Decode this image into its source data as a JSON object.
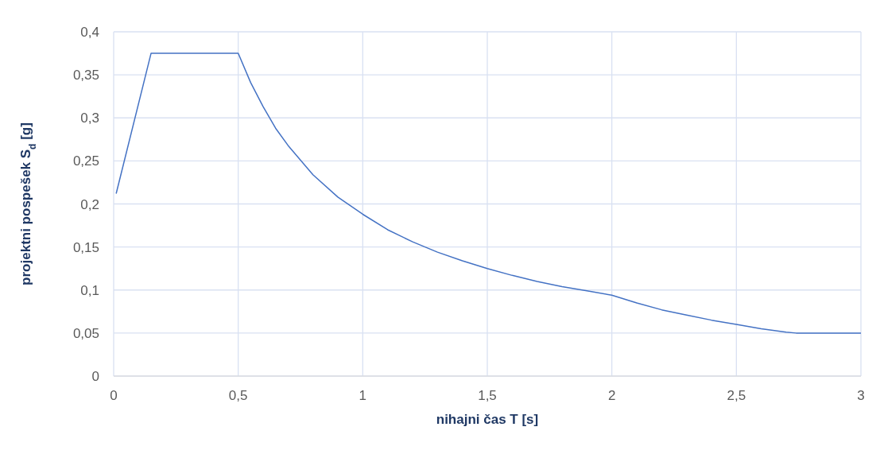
{
  "chart_data": {
    "type": "line",
    "xlabel": "nihajni čas T [s]",
    "ylabel": "projektni pospešek S$_{d}$ [g]",
    "x": [
      0.01,
      0.15,
      0.5,
      0.55,
      0.6,
      0.65,
      0.7,
      0.8,
      0.9,
      1,
      1.1,
      1.2,
      1.3,
      1.4,
      1.5,
      1.6,
      1.7,
      1.8,
      1.9,
      2,
      2.1,
      2.2,
      2.3,
      2.4,
      2.5,
      2.6,
      2.7,
      2.74,
      3
    ],
    "series": [
      {
        "color": "#4472c4",
        "values": [
          0.212,
          0.375,
          0.375,
          0.341,
          0.313,
          0.288,
          0.268,
          0.234,
          0.208,
          0.188,
          0.17,
          0.156,
          0.144,
          0.134,
          0.125,
          0.117,
          0.11,
          0.104,
          0.099,
          0.094,
          0.085,
          0.077,
          0.071,
          0.065,
          0.06,
          0.055,
          0.051,
          0.05,
          0.05
        ]
      }
    ],
    "xlim": [
      0,
      3
    ],
    "xticks": [
      0,
      {
        "value": 0.5,
        "label": "0,5"
      },
      1,
      {
        "value": 1.5,
        "label": "1,5"
      },
      2,
      {
        "value": 2.5,
        "label": "2,5"
      },
      3
    ],
    "ylim": [
      0,
      0.4
    ],
    "yticks": [
      0,
      {
        "value": 0.05,
        "label": "0,05"
      },
      {
        "value": 0.1,
        "label": "0,1"
      },
      {
        "value": 0.15,
        "label": "0,15"
      },
      {
        "value": 0.2,
        "label": "0,2"
      },
      {
        "value": 0.25,
        "label": "0,25"
      },
      {
        "value": 0.3,
        "label": "0,3"
      },
      {
        "value": 0.35,
        "label": "0,35"
      },
      {
        "value": 0.4,
        "label": "0,4"
      }
    ],
    "grid": true,
    "marker": "none",
    "line_style": "solid"
  }
}
